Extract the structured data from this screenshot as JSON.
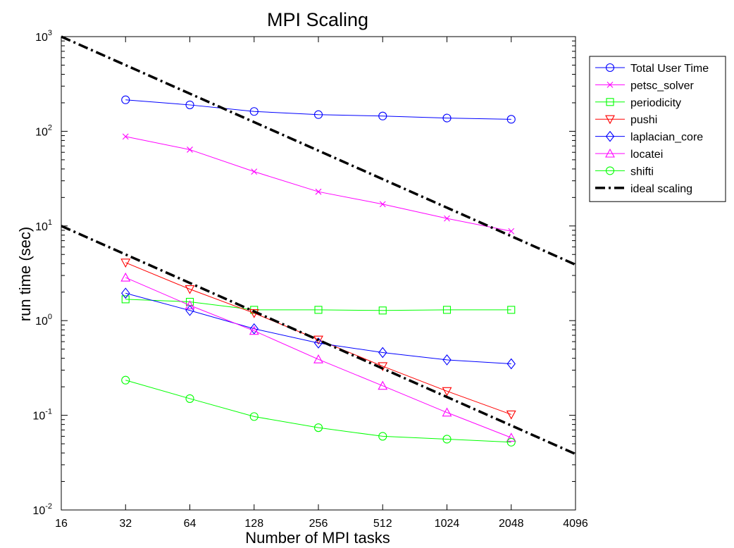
{
  "chart_data": {
    "type": "line",
    "title": "MPI Scaling",
    "xlabel": "Number of MPI tasks",
    "ylabel": "run time (sec)",
    "xscale": "log2",
    "yscale": "log10",
    "xlim": [
      16,
      4096
    ],
    "ylim": [
      0.01,
      1000
    ],
    "x_ticks": [
      16,
      32,
      64,
      128,
      256,
      512,
      1024,
      2048,
      4096
    ],
    "x_tick_labels": [
      "16",
      "32",
      "64",
      "128",
      "256",
      "512",
      "1024",
      "2048",
      "4096"
    ],
    "y_ticks": [
      {
        "value": 0.01,
        "base": "10",
        "exp": "-2"
      },
      {
        "value": 0.1,
        "base": "10",
        "exp": "-1"
      },
      {
        "value": 1,
        "base": "10",
        "exp": "0"
      },
      {
        "value": 10,
        "base": "10",
        "exp": "1"
      },
      {
        "value": 100,
        "base": "10",
        "exp": "2"
      },
      {
        "value": 1000,
        "base": "10",
        "exp": "3"
      }
    ],
    "grid": false,
    "legend_position": "outside-top-right",
    "x": [
      32,
      64,
      128,
      256,
      512,
      1024,
      2048
    ],
    "series": [
      {
        "name": "Total User Time",
        "color": "#0000ff",
        "marker": "circle",
        "values": [
          215,
          190,
          162,
          150,
          145,
          138,
          134
        ]
      },
      {
        "name": "petsc_solver",
        "color": "#ff00ff",
        "marker": "x",
        "values": [
          88,
          64,
          37.5,
          23,
          17,
          12,
          8.8
        ]
      },
      {
        "name": "periodicity",
        "color": "#00ff00",
        "marker": "square",
        "values": [
          1.68,
          1.58,
          1.3,
          1.3,
          1.28,
          1.3,
          1.3
        ]
      },
      {
        "name": "pushi",
        "color": "#ff0000",
        "marker": "triangle-down",
        "values": [
          4.1,
          2.15,
          1.2,
          0.63,
          0.33,
          0.18,
          0.102
        ]
      },
      {
        "name": "laplacian_core",
        "color": "#0000ff",
        "marker": "diamond",
        "values": [
          1.95,
          1.28,
          0.82,
          0.58,
          0.46,
          0.385,
          0.35
        ]
      },
      {
        "name": "locatei",
        "color": "#ff00ff",
        "marker": "triangle-up",
        "values": [
          2.85,
          1.45,
          0.78,
          0.39,
          0.205,
          0.107,
          0.058
        ]
      },
      {
        "name": "shifti",
        "color": "#00ff00",
        "marker": "circle",
        "values": [
          0.235,
          0.15,
          0.097,
          0.074,
          0.06,
          0.056,
          0.052
        ]
      },
      {
        "name": "ideal scaling",
        "color": "#000000",
        "marker": "none",
        "dash": "dashdot",
        "lines": [
          {
            "x": [
              16,
              4096
            ],
            "values": [
              1000,
              3.9
            ]
          },
          {
            "x": [
              16,
              4096
            ],
            "values": [
              10,
              0.039
            ]
          }
        ]
      }
    ]
  }
}
